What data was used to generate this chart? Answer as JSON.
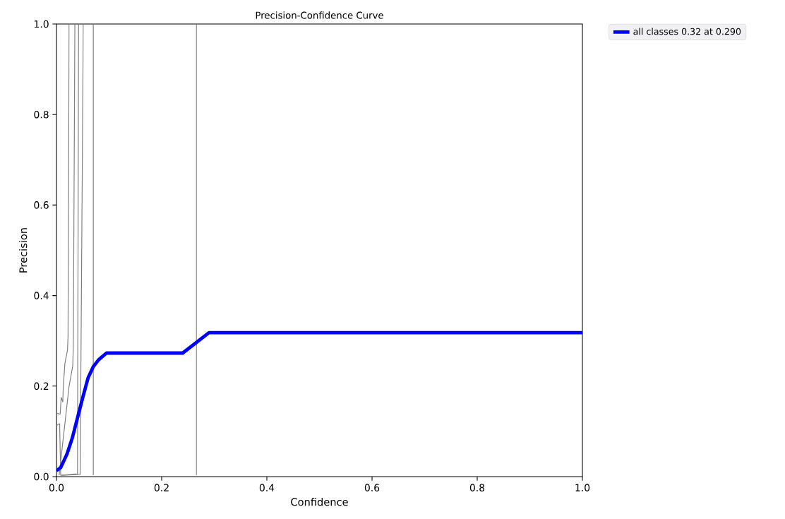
{
  "chart_data": {
    "type": "line",
    "title": "Precision-Confidence Curve",
    "xlabel": "Confidence",
    "ylabel": "Precision",
    "xlim": [
      0,
      1
    ],
    "ylim": [
      0,
      1
    ],
    "xticks": [
      {
        "value": 0,
        "label": "0.0"
      },
      {
        "value": 0.2,
        "label": "0.2"
      },
      {
        "value": 0.4,
        "label": "0.4"
      },
      {
        "value": 0.6,
        "label": "0.6"
      },
      {
        "value": 0.8,
        "label": "0.8"
      },
      {
        "value": 1,
        "label": "1.0"
      }
    ],
    "yticks": [
      {
        "value": 0,
        "label": "0.0"
      },
      {
        "value": 0.2,
        "label": "0.2"
      },
      {
        "value": 0.4,
        "label": "0.4"
      },
      {
        "value": 0.6,
        "label": "0.6"
      },
      {
        "value": 0.8,
        "label": "0.8"
      },
      {
        "value": 1,
        "label": "1.0"
      }
    ],
    "legend": "top right",
    "series": [
      {
        "color": "#808080",
        "x": [
          0,
          0.007,
          0.009,
          0.012,
          0.013,
          0.016,
          0.021,
          0.022,
          0.024
        ],
        "values": [
          0.14,
          0.138,
          0.175,
          0.165,
          0.2,
          0.25,
          0.28,
          0.31,
          1
        ]
      },
      {
        "color": "#808080",
        "x": [
          0,
          0.006,
          0.008,
          0.04,
          0.042
        ],
        "values": [
          0.113,
          0.117,
          0.003,
          0.006,
          1
        ]
      },
      {
        "color": "#808080",
        "x": [
          0.005,
          0.024,
          0.031,
          0.032,
          0.035
        ],
        "values": [
          0.003,
          0.2,
          0.245,
          0.29,
          1
        ]
      },
      {
        "color": "#808080",
        "x": [
          0.01,
          0.045,
          0.051
        ],
        "values": [
          0.003,
          0.005,
          1
        ]
      },
      {
        "color": "#808080",
        "x": [
          0.07,
          0.07
        ],
        "values": [
          0.003,
          1
        ]
      },
      {
        "color": "#808080",
        "x": [
          0.266,
          0.266
        ],
        "values": [
          0.003,
          1
        ]
      },
      {
        "name": "all classes 0.32 at 0.290",
        "color": "#0000ff",
        "x": [
          0,
          0.008,
          0.02,
          0.03,
          0.04,
          0.05,
          0.06,
          0.07,
          0.08,
          0.095,
          0.24,
          0.29,
          1
        ],
        "values": [
          0.013,
          0.02,
          0.05,
          0.085,
          0.13,
          0.175,
          0.218,
          0.243,
          0.258,
          0.273,
          0.273,
          0.318,
          0.318
        ]
      }
    ]
  }
}
